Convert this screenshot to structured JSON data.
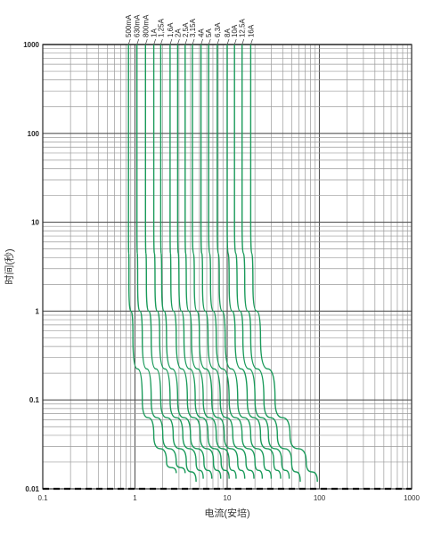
{
  "chart_data": {
    "type": "line",
    "title": "",
    "xlabel": "电流(安培)",
    "ylabel": "时间(秒)",
    "x_scale": "log",
    "y_scale": "log",
    "xlim": [
      0.1,
      1000
    ],
    "ylim": [
      0.01,
      1000
    ],
    "x_ticks": [
      "0.1",
      "1",
      "10",
      "100",
      "1000"
    ],
    "y_ticks": [
      "0.01",
      "0.1",
      "1",
      "10",
      "100",
      "1000"
    ],
    "grid": true,
    "legend": "series labels at top of each curve, rotated",
    "line_color": "#1a9a5a",
    "series": [
      {
        "name": "500mA",
        "points": [
          [
            0.85,
            1000
          ],
          [
            0.85,
            10
          ],
          [
            0.86,
            2
          ],
          [
            0.95,
            0.5
          ],
          [
            1.2,
            0.1
          ],
          [
            1.6,
            0.04
          ],
          [
            2.2,
            0.02
          ],
          [
            2.8,
            0.015
          ]
        ]
      },
      {
        "name": "630mA",
        "points": [
          [
            1.05,
            1000
          ],
          [
            1.05,
            10
          ],
          [
            1.07,
            2
          ],
          [
            1.2,
            0.5
          ],
          [
            1.5,
            0.1
          ],
          [
            2.0,
            0.04
          ],
          [
            2.8,
            0.02
          ],
          [
            3.5,
            0.015
          ]
        ]
      },
      {
        "name": "800mA",
        "points": [
          [
            1.3,
            1000
          ],
          [
            1.3,
            10
          ],
          [
            1.33,
            2
          ],
          [
            1.5,
            0.5
          ],
          [
            1.9,
            0.1
          ],
          [
            2.6,
            0.04
          ],
          [
            3.6,
            0.02
          ],
          [
            4.6,
            0.012
          ]
        ]
      },
      {
        "name": "1A",
        "points": [
          [
            1.6,
            1000
          ],
          [
            1.6,
            10
          ],
          [
            1.65,
            2
          ],
          [
            1.85,
            0.5
          ],
          [
            2.4,
            0.1
          ],
          [
            3.3,
            0.04
          ],
          [
            4.6,
            0.02
          ],
          [
            5.5,
            0.013
          ]
        ]
      },
      {
        "name": "1,25A",
        "points": [
          [
            1.9,
            1000
          ],
          [
            1.9,
            10
          ],
          [
            1.95,
            2
          ],
          [
            2.2,
            0.5
          ],
          [
            2.9,
            0.1
          ],
          [
            4.0,
            0.04
          ],
          [
            5.6,
            0.02
          ],
          [
            6.8,
            0.013
          ]
        ]
      },
      {
        "name": "1,6A",
        "points": [
          [
            2.4,
            1000
          ],
          [
            2.4,
            10
          ],
          [
            2.45,
            2
          ],
          [
            2.8,
            0.5
          ],
          [
            3.7,
            0.1
          ],
          [
            5.1,
            0.04
          ],
          [
            7.1,
            0.02
          ],
          [
            8.5,
            0.013
          ]
        ]
      },
      {
        "name": "2A",
        "points": [
          [
            2.9,
            1000
          ],
          [
            2.9,
            10
          ],
          [
            3.0,
            2
          ],
          [
            3.4,
            0.5
          ],
          [
            4.5,
            0.1
          ],
          [
            6.2,
            0.04
          ],
          [
            8.6,
            0.02
          ],
          [
            10.5,
            0.013
          ]
        ]
      },
      {
        "name": "2,5A",
        "points": [
          [
            3.5,
            1000
          ],
          [
            3.5,
            10
          ],
          [
            3.6,
            2
          ],
          [
            4.1,
            0.5
          ],
          [
            5.5,
            0.1
          ],
          [
            7.6,
            0.04
          ],
          [
            10.5,
            0.02
          ],
          [
            12.5,
            0.013
          ]
        ]
      },
      {
        "name": "3,15A",
        "points": [
          [
            4.2,
            1000
          ],
          [
            4.2,
            10
          ],
          [
            4.4,
            2
          ],
          [
            5.0,
            0.5
          ],
          [
            6.8,
            0.1
          ],
          [
            9.3,
            0.04
          ],
          [
            13,
            0.02
          ],
          [
            15.5,
            0.013
          ]
        ]
      },
      {
        "name": "4A",
        "points": [
          [
            5.2,
            1000
          ],
          [
            5.2,
            10
          ],
          [
            5.4,
            2
          ],
          [
            6.2,
            0.5
          ],
          [
            8.4,
            0.1
          ],
          [
            11.5,
            0.04
          ],
          [
            16,
            0.02
          ],
          [
            19.5,
            0.013
          ]
        ]
      },
      {
        "name": "5A",
        "points": [
          [
            6.3,
            1000
          ],
          [
            6.3,
            10
          ],
          [
            6.6,
            2
          ],
          [
            7.6,
            0.5
          ],
          [
            10.5,
            0.1
          ],
          [
            14.5,
            0.04
          ],
          [
            20,
            0.02
          ],
          [
            24,
            0.013
          ]
        ]
      },
      {
        "name": "6,3A",
        "points": [
          [
            7.8,
            1000
          ],
          [
            7.8,
            10
          ],
          [
            8.2,
            2
          ],
          [
            9.5,
            0.5
          ],
          [
            13,
            0.1
          ],
          [
            18,
            0.04
          ],
          [
            25,
            0.02
          ],
          [
            30,
            0.013
          ]
        ]
      },
      {
        "name": "8A",
        "points": [
          [
            10,
            1000
          ],
          [
            10,
            10
          ],
          [
            10.5,
            2
          ],
          [
            12.2,
            0.5
          ],
          [
            16.5,
            0.1
          ],
          [
            23,
            0.04
          ],
          [
            32,
            0.02
          ],
          [
            38,
            0.013
          ]
        ]
      },
      {
        "name": "10A",
        "points": [
          [
            12,
            1000
          ],
          [
            12,
            10
          ],
          [
            12.8,
            2
          ],
          [
            14.8,
            0.5
          ],
          [
            20,
            0.1
          ],
          [
            28,
            0.04
          ],
          [
            39,
            0.02
          ],
          [
            47,
            0.013
          ]
        ]
      },
      {
        "name": "12,5A",
        "points": [
          [
            14.5,
            1000
          ],
          [
            14.5,
            10
          ],
          [
            15.5,
            2
          ],
          [
            18,
            0.5
          ],
          [
            25,
            0.1
          ],
          [
            35,
            0.04
          ],
          [
            50,
            0.02
          ],
          [
            62,
            0.012
          ]
        ]
      },
      {
        "name": "16A",
        "points": [
          [
            18,
            1000
          ],
          [
            18,
            10
          ],
          [
            19,
            2
          ],
          [
            23,
            0.5
          ],
          [
            33,
            0.1
          ],
          [
            48,
            0.04
          ],
          [
            72,
            0.02
          ],
          [
            95,
            0.012
          ]
        ]
      }
    ]
  }
}
